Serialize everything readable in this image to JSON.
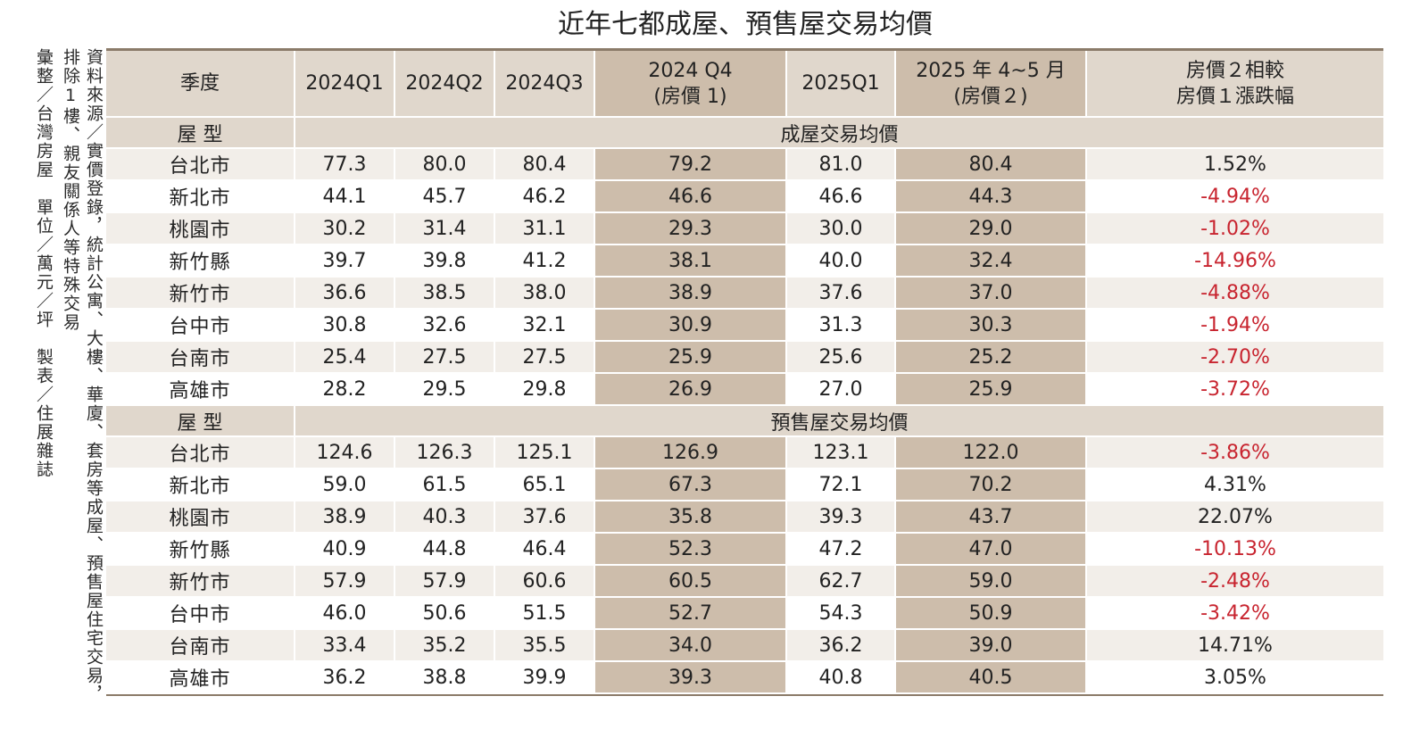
{
  "title": "近年七都成屋、預售屋交易均價",
  "notes": {
    "source": "資料來源／實價登錄，統計公寓、大樓、華廈、套房等成屋、預售屋住宅交易，排除1樓、親友關係人等特殊交易",
    "compile": "彙整／台灣房屋　單位／萬元／坪　製表／住展雜誌"
  },
  "header": {
    "col0": "季度",
    "cols": [
      "2024Q1",
      "2024Q2",
      "2024Q3",
      "2024 Q4",
      "2025Q1",
      "2025 年 4~5 月"
    ],
    "col3_sub": "(房價 1)",
    "col5_sub": "(房價２)",
    "change_line1": "房價２相較",
    "change_line2": "房價１漲跌幅"
  },
  "sections": [
    {
      "type_label": "屋 型",
      "section_title": "成屋交易均價",
      "rows": [
        {
          "city": "台北市",
          "values": [
            "77.3",
            "80.0",
            "80.4",
            "79.2",
            "81.0",
            "80.4"
          ],
          "change": "1.52%"
        },
        {
          "city": "新北市",
          "values": [
            "44.1",
            "45.7",
            "46.2",
            "46.6",
            "46.6",
            "44.3"
          ],
          "change": "-4.94%"
        },
        {
          "city": "桃園市",
          "values": [
            "30.2",
            "31.4",
            "31.1",
            "29.3",
            "30.0",
            "29.0"
          ],
          "change": "-1.02%"
        },
        {
          "city": "新竹縣",
          "values": [
            "39.7",
            "39.8",
            "41.2",
            "38.1",
            "40.0",
            "32.4"
          ],
          "change": "-14.96%"
        },
        {
          "city": "新竹市",
          "values": [
            "36.6",
            "38.5",
            "38.0",
            "38.9",
            "37.6",
            "37.0"
          ],
          "change": "-4.88%"
        },
        {
          "city": "台中市",
          "values": [
            "30.8",
            "32.6",
            "32.1",
            "30.9",
            "31.3",
            "30.3"
          ],
          "change": "-1.94%"
        },
        {
          "city": "台南市",
          "values": [
            "25.4",
            "27.5",
            "27.5",
            "25.9",
            "25.6",
            "25.2"
          ],
          "change": "-2.70%"
        },
        {
          "city": "高雄市",
          "values": [
            "28.2",
            "29.5",
            "29.8",
            "26.9",
            "27.0",
            "25.9"
          ],
          "change": "-3.72%"
        }
      ]
    },
    {
      "type_label": "屋 型",
      "section_title": "預售屋交易均價",
      "rows": [
        {
          "city": "台北市",
          "values": [
            "124.6",
            "126.3",
            "125.1",
            "126.9",
            "123.1",
            "122.0"
          ],
          "change": "-3.86%"
        },
        {
          "city": "新北市",
          "values": [
            "59.0",
            "61.5",
            "65.1",
            "67.3",
            "72.1",
            "70.2"
          ],
          "change": "4.31%"
        },
        {
          "city": "桃園市",
          "values": [
            "38.9",
            "40.3",
            "37.6",
            "35.8",
            "39.3",
            "43.7"
          ],
          "change": "22.07%"
        },
        {
          "city": "新竹縣",
          "values": [
            "40.9",
            "44.8",
            "46.4",
            "52.3",
            "47.2",
            "47.0"
          ],
          "change": "-10.13%"
        },
        {
          "city": "新竹市",
          "values": [
            "57.9",
            "57.9",
            "60.6",
            "60.5",
            "62.7",
            "59.0"
          ],
          "change": "-2.48%"
        },
        {
          "city": "台中市",
          "values": [
            "46.0",
            "50.6",
            "51.5",
            "52.7",
            "54.3",
            "50.9"
          ],
          "change": "-3.42%"
        },
        {
          "city": "台南市",
          "values": [
            "33.4",
            "35.2",
            "35.5",
            "34.0",
            "36.2",
            "39.0"
          ],
          "change": "14.71%"
        },
        {
          "city": "高雄市",
          "values": [
            "36.2",
            "38.8",
            "39.9",
            "39.3",
            "40.8",
            "40.5"
          ],
          "change": "3.05%"
        }
      ]
    }
  ],
  "colors": {
    "header_bg": "#e0d7cc",
    "highlight_col_bg": "#cdbdab",
    "stripe_bg": "#f2eee9",
    "negative_text": "#c8242f",
    "rule": "#8b7b69"
  }
}
